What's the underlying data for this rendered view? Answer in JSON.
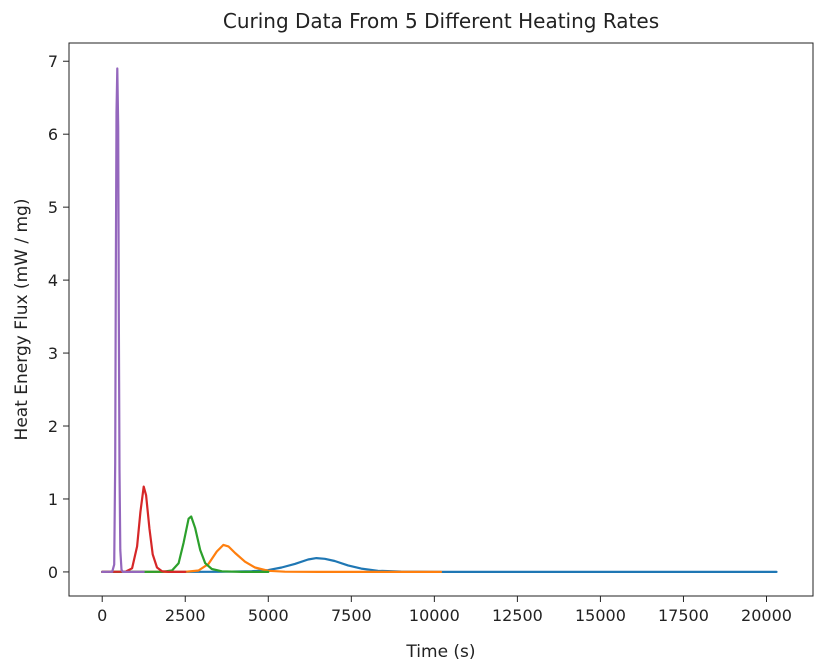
{
  "chart_data": {
    "type": "line",
    "title": "Curing Data From 5 Different Heating Rates",
    "xlabel": "Time (s)",
    "ylabel": "Heat Energy Flux (mW / mg)",
    "xlim": [
      -1000,
      21400
    ],
    "ylim": [
      -0.33,
      7.25
    ],
    "xticks": [
      0,
      2500,
      5000,
      7500,
      10000,
      12500,
      15000,
      17500,
      20000
    ],
    "yticks": [
      0,
      1,
      2,
      3,
      4,
      5,
      6,
      7
    ],
    "grid": false,
    "legend": "none",
    "series": [
      {
        "color": "#1f77b4",
        "points": [
          [
            0,
            0
          ],
          [
            3500,
            0.002
          ],
          [
            4500,
            0.01
          ],
          [
            5000,
            0.025
          ],
          [
            5400,
            0.06
          ],
          [
            5800,
            0.11
          ],
          [
            6200,
            0.17
          ],
          [
            6450,
            0.19
          ],
          [
            6700,
            0.18
          ],
          [
            7000,
            0.15
          ],
          [
            7400,
            0.09
          ],
          [
            7800,
            0.045
          ],
          [
            8300,
            0.015
          ],
          [
            9000,
            0.004
          ],
          [
            10000,
            0.001
          ],
          [
            12000,
            0
          ],
          [
            20300,
            0
          ]
        ]
      },
      {
        "color": "#ff7f0e",
        "points": [
          [
            0,
            0
          ],
          [
            2500,
            0.002
          ],
          [
            2900,
            0.02
          ],
          [
            3200,
            0.11
          ],
          [
            3450,
            0.28
          ],
          [
            3650,
            0.37
          ],
          [
            3800,
            0.35
          ],
          [
            4000,
            0.26
          ],
          [
            4300,
            0.14
          ],
          [
            4600,
            0.06
          ],
          [
            5000,
            0.015
          ],
          [
            5500,
            0.003
          ],
          [
            6500,
            0
          ],
          [
            10200,
            0
          ]
        ]
      },
      {
        "color": "#2ca02c",
        "points": [
          [
            0,
            0
          ],
          [
            1800,
            0.002
          ],
          [
            2100,
            0.02
          ],
          [
            2300,
            0.12
          ],
          [
            2450,
            0.4
          ],
          [
            2600,
            0.73
          ],
          [
            2680,
            0.76
          ],
          [
            2800,
            0.6
          ],
          [
            2950,
            0.3
          ],
          [
            3100,
            0.12
          ],
          [
            3300,
            0.04
          ],
          [
            3600,
            0.008
          ],
          [
            4200,
            0
          ],
          [
            5000,
            0
          ]
        ]
      },
      {
        "color": "#d62728",
        "points": [
          [
            0,
            0
          ],
          [
            700,
            0.003
          ],
          [
            900,
            0.05
          ],
          [
            1050,
            0.35
          ],
          [
            1150,
            0.82
          ],
          [
            1250,
            1.17
          ],
          [
            1320,
            1.05
          ],
          [
            1420,
            0.6
          ],
          [
            1520,
            0.24
          ],
          [
            1650,
            0.06
          ],
          [
            1800,
            0.01
          ],
          [
            2000,
            0
          ],
          [
            2500,
            0
          ]
        ]
      },
      {
        "color": "#9467bd",
        "points": [
          [
            0,
            0
          ],
          [
            300,
            0.002
          ],
          [
            360,
            0.1
          ],
          [
            390,
            1.5
          ],
          [
            410,
            4.0
          ],
          [
            430,
            6.3
          ],
          [
            455,
            6.9
          ],
          [
            480,
            6.1
          ],
          [
            500,
            3.6
          ],
          [
            520,
            1.4
          ],
          [
            545,
            0.3
          ],
          [
            580,
            0.03
          ],
          [
            620,
            0
          ],
          [
            1250,
            0
          ]
        ]
      }
    ]
  }
}
